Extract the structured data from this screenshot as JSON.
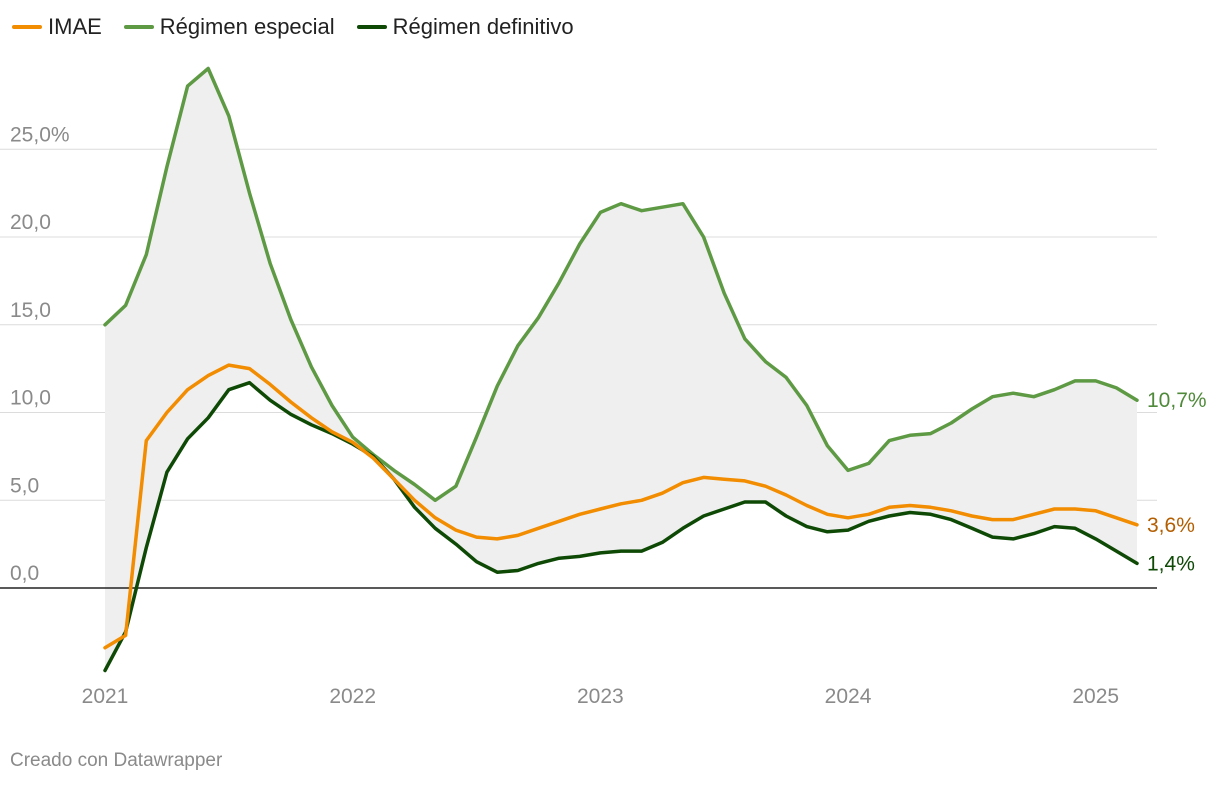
{
  "chart_data": {
    "type": "line",
    "title": "",
    "xlabel": "",
    "ylabel": "",
    "ylim": [
      -5,
      30
    ],
    "yticks": [
      {
        "value": 0,
        "label": "0,0"
      },
      {
        "value": 5,
        "label": "5,0"
      },
      {
        "value": 10,
        "label": "10,0"
      },
      {
        "value": 15,
        "label": "15,0"
      },
      {
        "value": 20,
        "label": "20,0"
      },
      {
        "value": 25,
        "label": "25,0%"
      }
    ],
    "xticks": [
      {
        "index": 0,
        "label": "2021"
      },
      {
        "index": 12,
        "label": "2022"
      },
      {
        "index": 24,
        "label": "2023"
      },
      {
        "index": 36,
        "label": "2024"
      },
      {
        "index": 48,
        "label": "2025"
      }
    ],
    "x_start": "2021-01",
    "x_end": "2025-03",
    "shaded_band": "Régimen especial vs Régimen definitivo",
    "series": [
      {
        "name": "IMAE",
        "color": "#f28c00",
        "end_label": "3,6%",
        "end_label_color": "#b35e00",
        "values": [
          -3.4,
          -2.7,
          8.4,
          10.0,
          11.3,
          12.1,
          12.7,
          12.5,
          11.6,
          10.6,
          9.7,
          8.9,
          8.3,
          7.4,
          6.2,
          5.0,
          4.0,
          3.3,
          2.9,
          2.8,
          3.0,
          3.4,
          3.8,
          4.2,
          4.5,
          4.8,
          5.0,
          5.4,
          6.0,
          6.3,
          6.2,
          6.1,
          5.8,
          5.3,
          4.7,
          4.2,
          4.0,
          4.2,
          4.6,
          4.7,
          4.6,
          4.4,
          4.1,
          3.9,
          3.9,
          4.2,
          4.5,
          4.5,
          4.4,
          4.0,
          3.6
        ]
      },
      {
        "name": "Régimen especial",
        "color": "#5e9a44",
        "end_label": "10,7%",
        "end_label_color": "#4f8a3a",
        "values": [
          15.0,
          16.1,
          19.0,
          24.0,
          28.6,
          29.6,
          26.9,
          22.5,
          18.5,
          15.3,
          12.6,
          10.4,
          8.6,
          7.6,
          6.7,
          5.9,
          5.0,
          5.8,
          8.6,
          11.5,
          13.8,
          15.4,
          17.4,
          19.6,
          21.4,
          21.9,
          21.5,
          21.7,
          21.9,
          20.0,
          16.8,
          14.2,
          12.9,
          12.0,
          10.4,
          8.1,
          6.7,
          7.1,
          8.4,
          8.7,
          8.8,
          9.4,
          10.2,
          10.9,
          11.1,
          10.9,
          11.3,
          11.8,
          11.8,
          11.4,
          10.7
        ]
      },
      {
        "name": "Régimen definitivo",
        "color": "#0e4a06",
        "end_label": "1,4%",
        "end_label_color": "#0e4a06",
        "values": [
          -4.7,
          -2.5,
          2.3,
          6.6,
          8.5,
          9.7,
          11.3,
          11.7,
          10.7,
          9.9,
          9.3,
          8.8,
          8.2,
          7.5,
          6.2,
          4.6,
          3.4,
          2.5,
          1.5,
          0.9,
          1.0,
          1.4,
          1.7,
          1.8,
          2.0,
          2.1,
          2.1,
          2.6,
          3.4,
          4.1,
          4.5,
          4.9,
          4.9,
          4.1,
          3.5,
          3.2,
          3.3,
          3.8,
          4.1,
          4.3,
          4.2,
          3.9,
          3.4,
          2.9,
          2.8,
          3.1,
          3.5,
          3.4,
          2.8,
          2.1,
          1.4
        ]
      }
    ]
  },
  "credit": "Creado con Datawrapper"
}
